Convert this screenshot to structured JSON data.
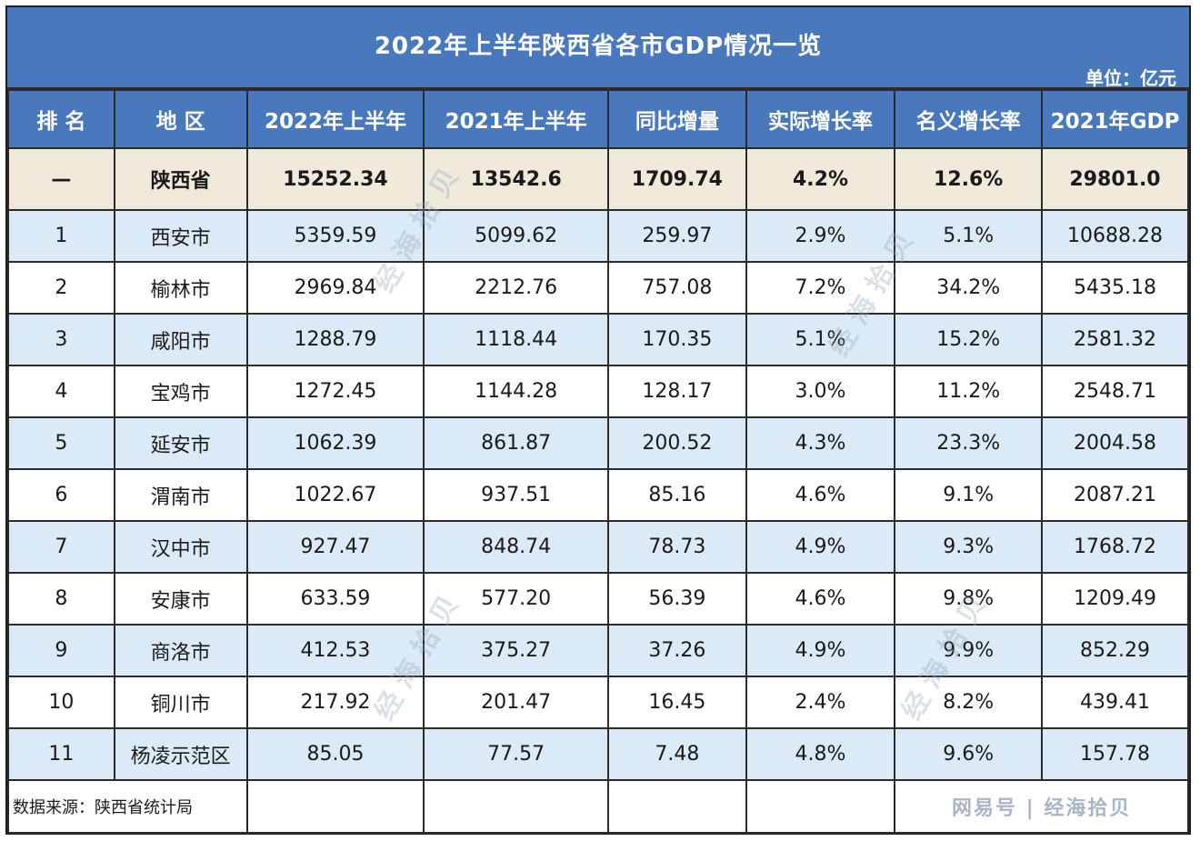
{
  "title": "2022年上半年陕西省各市GDP情况一览",
  "unit": "单位：亿元",
  "headers": [
    "排 名",
    "地 区",
    "2022年上半年",
    "2021年上半年",
    "同比增量",
    "实际增长率",
    "名义增长率",
    "2021年GDP"
  ],
  "province": [
    "—",
    "陕西省",
    "15252.34",
    "13542.6",
    "1709.74",
    "4.2%",
    "12.6%",
    "29801.0"
  ],
  "rows": [
    [
      "1",
      "西安市",
      "5359.59",
      "5099.62",
      "259.97",
      "2.9%",
      "5.1%",
      "10688.28"
    ],
    [
      "2",
      "榆林市",
      "2969.84",
      "2212.76",
      "757.08",
      "7.2%",
      "34.2%",
      "5435.18"
    ],
    [
      "3",
      "咸阳市",
      "1288.79",
      "1118.44",
      "170.35",
      "5.1%",
      "15.2%",
      "2581.32"
    ],
    [
      "4",
      "宝鸡市",
      "1272.45",
      "1144.28",
      "128.17",
      "3.0%",
      "11.2%",
      "2548.71"
    ],
    [
      "5",
      "延安市",
      "1062.39",
      "861.87",
      "200.52",
      "4.3%",
      "23.3%",
      "2004.58"
    ],
    [
      "6",
      "渭南市",
      "1022.67",
      "937.51",
      "85.16",
      "4.6%",
      "9.1%",
      "2087.21"
    ],
    [
      "7",
      "汉中市",
      "927.47",
      "848.74",
      "78.73",
      "4.9%",
      "9.3%",
      "1768.72"
    ],
    [
      "8",
      "安康市",
      "633.59",
      "577.20",
      "56.39",
      "4.6%",
      "9.8%",
      "1209.49"
    ],
    [
      "9",
      "商洛市",
      "412.53",
      "375.27",
      "37.26",
      "4.9%",
      "9.9%",
      "852.29"
    ],
    [
      "10",
      "铜川市",
      "217.92",
      "201.47",
      "16.45",
      "2.4%",
      "8.2%",
      "439.41"
    ],
    [
      "11",
      "杨凌示范区",
      "85.05",
      "77.57",
      "7.48",
      "4.8%",
      "9.6%",
      "157.78"
    ]
  ],
  "source": "数据来源：陕西省统计局",
  "watermark": "网易号 | 经海拾贝"
}
